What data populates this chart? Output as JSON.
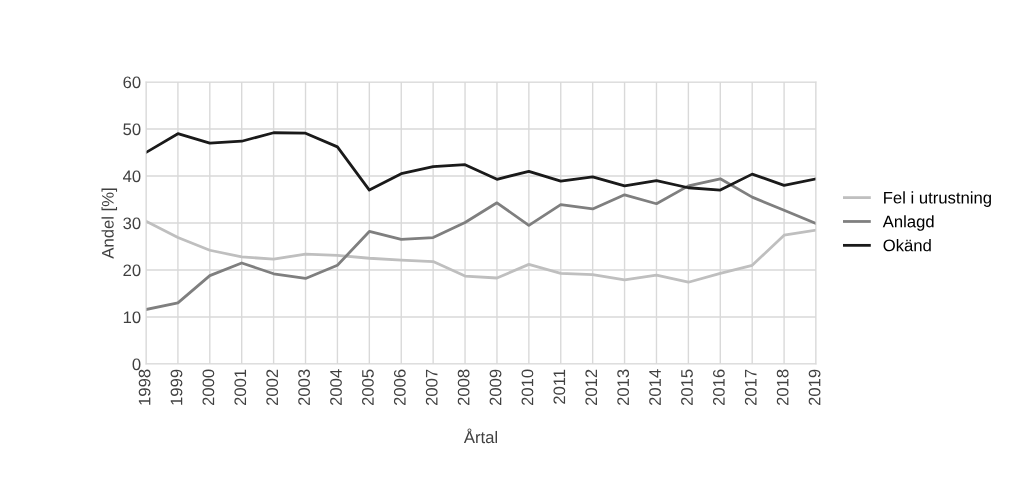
{
  "chart_data": {
    "type": "line",
    "xlabel": "Årtal",
    "ylabel": "Andel [%]",
    "categories": [
      "1998",
      "1999",
      "2000",
      "2001",
      "2002",
      "2003",
      "2004",
      "2005",
      "2006",
      "2007",
      "2008",
      "2009",
      "2010",
      "2011",
      "2012",
      "2013",
      "2014",
      "2015",
      "2016",
      "2017",
      "2018",
      "2019"
    ],
    "series": [
      {
        "name": "Fel i utrustning",
        "color": "#bfbfbf",
        "values": [
          30.4,
          26.9,
          24.2,
          22.8,
          22.3,
          23.4,
          23.1,
          22.5,
          22.1,
          21.8,
          18.7,
          18.3,
          21.2,
          19.3,
          19,
          17.9,
          18.9,
          17.4,
          19.3,
          21,
          27.4,
          28.5
        ]
      },
      {
        "name": "Anlagd",
        "color": "#7f7f7f",
        "values": [
          11.6,
          13,
          18.8,
          21.5,
          19.2,
          18.2,
          21,
          28.2,
          26.5,
          26.9,
          30.1,
          34.3,
          29.5,
          33.9,
          33,
          36,
          34.1,
          37.9,
          39.4,
          35.5,
          32.7,
          29.9
        ]
      },
      {
        "name": "Okänd",
        "color": "#1a1a1a",
        "values": [
          45,
          49,
          47,
          47.4,
          49.2,
          49.1,
          46.2,
          37,
          40.5,
          42,
          42.4,
          39.3,
          41,
          38.9,
          39.8,
          37.9,
          39,
          37.5,
          37,
          40.4,
          38,
          39.4
        ]
      }
    ],
    "ylim": [
      0,
      60
    ],
    "yticks": [
      0,
      10,
      20,
      30,
      40,
      50,
      60
    ],
    "grid": true,
    "legend": "right",
    "marker": "none",
    "line_style": "solid"
  }
}
